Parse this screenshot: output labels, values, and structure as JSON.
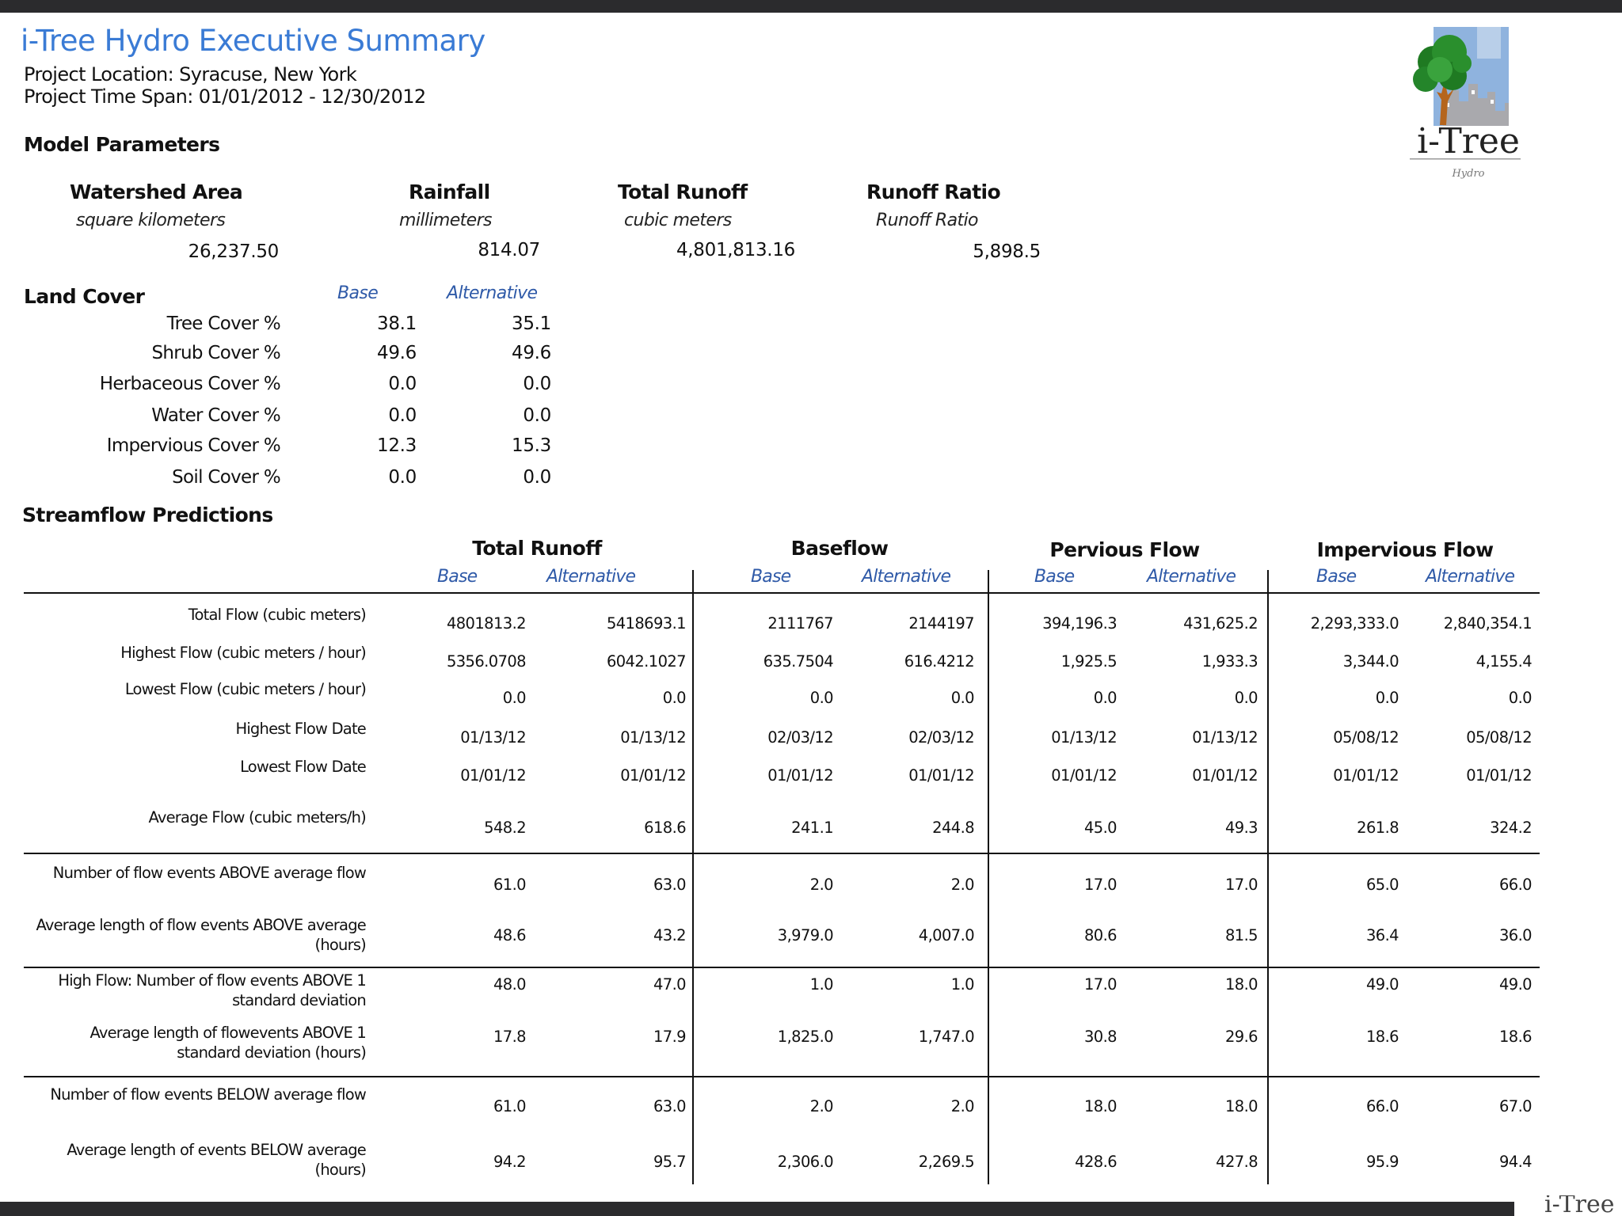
{
  "report": {
    "title": "i-Tree Hydro Executive Summary",
    "location": "Project Location: Syracuse, New York",
    "time_span": "Project Time Span: 01/01/2012 - 12/30/2012",
    "logo_text": "i-Tree",
    "logo_subtext": "Hydro",
    "footer_fragment": "i-Tree"
  },
  "model_parameters": {
    "heading": "Model Parameters",
    "items": [
      {
        "label": "Watershed Area",
        "unit": "square kilometers",
        "value": "26,237.50"
      },
      {
        "label": "Rainfall",
        "unit": "millimeters",
        "value": "814.07"
      },
      {
        "label": "Total Runoff",
        "unit": "cubic meters",
        "value": "4,801,813.16"
      },
      {
        "label": "Runoff Ratio",
        "unit": "Runoff Ratio",
        "value": "5,898.5"
      }
    ]
  },
  "land_cover": {
    "heading": "Land Cover",
    "base_label": "Base",
    "alt_label": "Alternative",
    "rows": [
      {
        "label": "Tree Cover %",
        "base": "38.1",
        "alt": "35.1"
      },
      {
        "label": "Shrub Cover %",
        "base": "49.6",
        "alt": "49.6"
      },
      {
        "label": "Herbaceous Cover %",
        "base": "0.0",
        "alt": "0.0"
      },
      {
        "label": "Water Cover %",
        "base": "0.0",
        "alt": "0.0"
      },
      {
        "label": "Impervious Cover %",
        "base": "12.3",
        "alt": "15.3"
      },
      {
        "label": "Soil Cover %",
        "base": "0.0",
        "alt": "0.0"
      }
    ]
  },
  "streamflow": {
    "heading": "Streamflow Predictions",
    "groups": [
      "Total Runoff",
      "Baseflow",
      "Pervious Flow",
      "Impervious Flow"
    ],
    "base_label": "Base",
    "alt_label": "Alternative",
    "rows": [
      {
        "label": "Total Flow (cubic meters)",
        "values": [
          "4801813.2",
          "5418693.1",
          "2111767",
          "2144197",
          "394,196.3",
          "431,625.2",
          "2,293,333.0",
          "2,840,354.1"
        ]
      },
      {
        "label": "Highest Flow (cubic meters / hour)",
        "values": [
          "5356.0708",
          "6042.1027",
          "635.7504",
          "616.4212",
          "1,925.5",
          "1,933.3",
          "3,344.0",
          "4,155.4"
        ]
      },
      {
        "label": "Lowest Flow (cubic meters / hour)",
        "values": [
          "0.0",
          "0.0",
          "0.0",
          "0.0",
          "0.0",
          "0.0",
          "0.0",
          "0.0"
        ]
      },
      {
        "label": "Highest Flow Date",
        "values": [
          "01/13/12",
          "01/13/12",
          "02/03/12",
          "02/03/12",
          "01/13/12",
          "01/13/12",
          "05/08/12",
          "05/08/12"
        ]
      },
      {
        "label": "Lowest Flow Date",
        "values": [
          "01/01/12",
          "01/01/12",
          "01/01/12",
          "01/01/12",
          "01/01/12",
          "01/01/12",
          "01/01/12",
          "01/01/12"
        ]
      },
      {
        "label": "Average Flow (cubic meters/h)",
        "values": [
          "548.2",
          "618.6",
          "241.1",
          "244.8",
          "45.0",
          "49.3",
          "261.8",
          "324.2"
        ]
      },
      {
        "label": "Number of flow events ABOVE average flow",
        "values": [
          "61.0",
          "63.0",
          "2.0",
          "2.0",
          "17.0",
          "17.0",
          "65.0",
          "66.0"
        ]
      },
      {
        "label": "Average length of flow events ABOVE average (hours)",
        "values": [
          "48.6",
          "43.2",
          "3,979.0",
          "4,007.0",
          "80.6",
          "81.5",
          "36.4",
          "36.0"
        ]
      },
      {
        "label": "High Flow: Number of flow events ABOVE 1 standard deviation",
        "values": [
          "48.0",
          "47.0",
          "1.0",
          "1.0",
          "17.0",
          "18.0",
          "49.0",
          "49.0"
        ]
      },
      {
        "label": "Average length of flowevents ABOVE 1 standard deviation (hours)",
        "values": [
          "17.8",
          "17.9",
          "1,825.0",
          "1,747.0",
          "30.8",
          "29.6",
          "18.6",
          "18.6"
        ]
      },
      {
        "label": "Number of flow events BELOW average flow",
        "values": [
          "61.0",
          "63.0",
          "2.0",
          "2.0",
          "18.0",
          "18.0",
          "66.0",
          "67.0"
        ]
      },
      {
        "label": "Average length of events BELOW average (hours)",
        "values": [
          "94.2",
          "95.7",
          "2,306.0",
          "2,269.5",
          "428.6",
          "427.8",
          "95.9",
          "94.4"
        ]
      }
    ]
  }
}
